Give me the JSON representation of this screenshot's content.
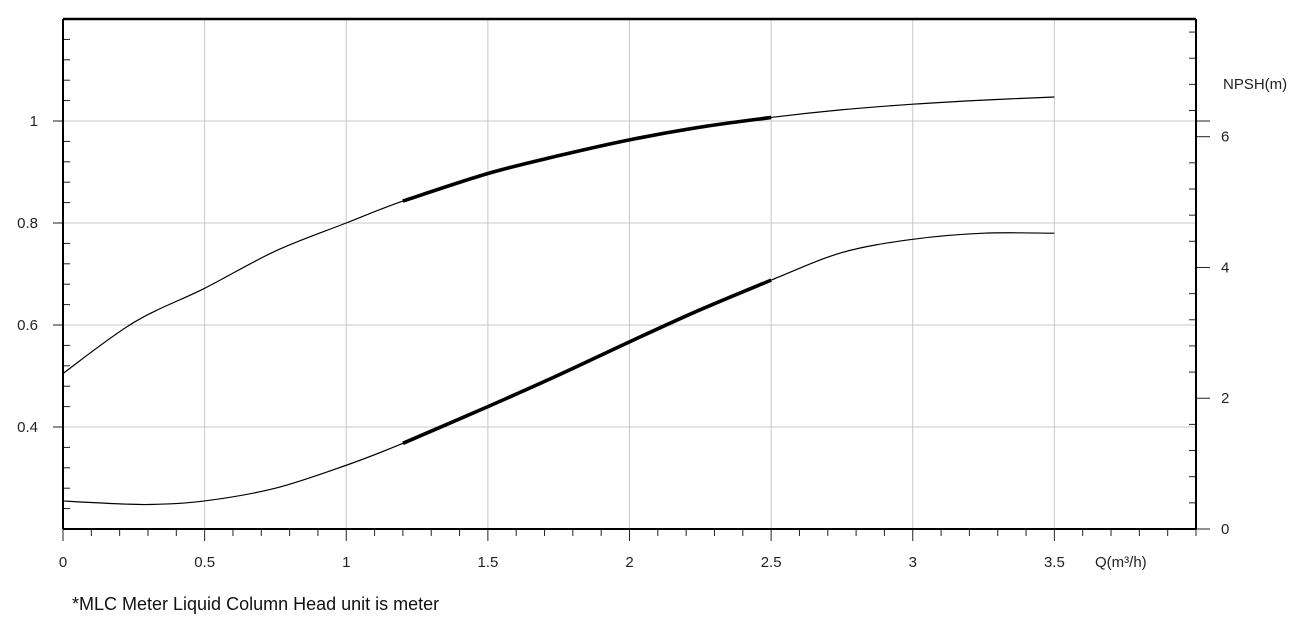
{
  "chart_data": {
    "type": "line",
    "x_axis": {
      "label": "Q(m³/h)",
      "range": [
        0,
        4.0
      ],
      "ticks": [
        0,
        0.5,
        1,
        1.5,
        2,
        2.5,
        3,
        3.5
      ],
      "tick_labels": [
        "0",
        "0.5",
        "1",
        "1.5",
        "2",
        "2.5",
        "3",
        "3.5"
      ],
      "minor_step": 0.1
    },
    "y_left": {
      "label": "",
      "range": [
        0.2,
        1.2
      ],
      "ticks": [
        0.4,
        0.6,
        0.8,
        1.0
      ],
      "tick_labels": [
        "0.4",
        "0.6",
        "0.8",
        "1"
      ],
      "minor_step": 0.04
    },
    "y_right": {
      "label": "NPSH(m)",
      "range": [
        0,
        7.8
      ],
      "ticks": [
        0,
        2,
        4,
        6
      ],
      "tick_labels": [
        "0",
        "2",
        "4",
        "6"
      ],
      "minor_step": 0.4
    },
    "grid": true,
    "bold_range": [
      1.2,
      2.5
    ],
    "series": [
      {
        "axis": "left",
        "x": [
          0,
          0.25,
          0.5,
          0.75,
          1.0,
          1.2,
          1.5,
          1.75,
          2.0,
          2.25,
          2.5,
          2.75,
          3.0,
          3.25,
          3.5
        ],
        "y": [
          0.505,
          0.605,
          0.672,
          0.745,
          0.8,
          0.843,
          0.897,
          0.932,
          0.963,
          0.988,
          1.007,
          1.022,
          1.033,
          1.041,
          1.047
        ]
      },
      {
        "axis": "left",
        "x": [
          0,
          0.1,
          0.3,
          0.5,
          0.75,
          1.0,
          1.2,
          1.5,
          1.75,
          2.0,
          2.25,
          2.5,
          2.75,
          3.0,
          3.25,
          3.5
        ],
        "y": [
          0.255,
          0.252,
          0.248,
          0.255,
          0.28,
          0.325,
          0.368,
          0.44,
          0.502,
          0.567,
          0.63,
          0.688,
          0.742,
          0.768,
          0.78,
          0.78
        ]
      }
    ]
  },
  "footnote": "*MLC Meter Liquid Column Head unit is meter"
}
